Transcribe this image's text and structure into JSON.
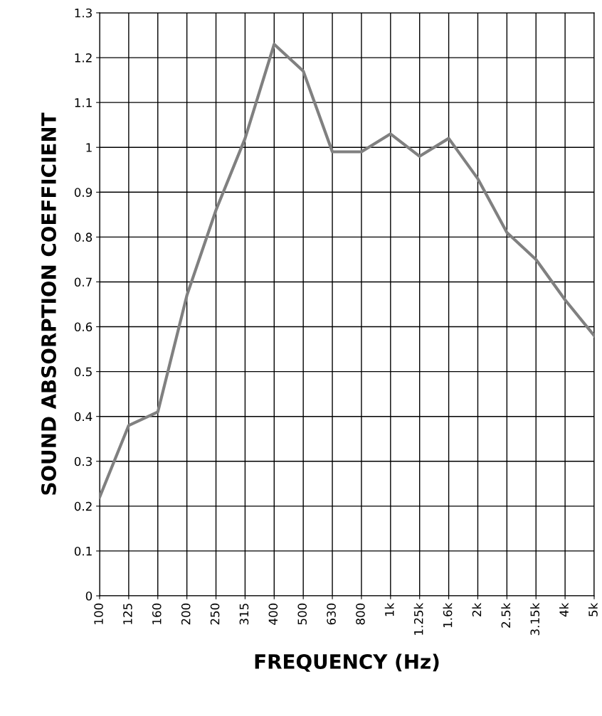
{
  "chart_data": {
    "type": "line",
    "xlabel": "FREQUENCY (Hz)",
    "ylabel": "SOUND ABSORPTION COEFFICIENT",
    "categories": [
      "100",
      "125",
      "160",
      "200",
      "250",
      "315",
      "400",
      "500",
      "630",
      "800",
      "1k",
      "1.25k",
      "1.6k",
      "2k",
      "2.5k",
      "3.15k",
      "4k",
      "5k"
    ],
    "series": [
      {
        "color": "#808080",
        "values": [
          0.22,
          0.38,
          0.41,
          0.67,
          0.86,
          1.02,
          1.23,
          1.17,
          0.99,
          0.99,
          1.03,
          0.98,
          1.02,
          0.93,
          0.81,
          0.75,
          0.66,
          0.58
        ]
      }
    ],
    "ylim": [
      0,
      1.3
    ],
    "yticks": [
      0,
      0.1,
      0.2,
      0.3,
      0.4,
      0.5,
      0.6,
      0.7,
      0.8,
      0.9,
      1,
      1.1,
      1.2,
      1.3
    ],
    "grid": true,
    "marker": "none",
    "line_style": "solid",
    "legend": false
  }
}
